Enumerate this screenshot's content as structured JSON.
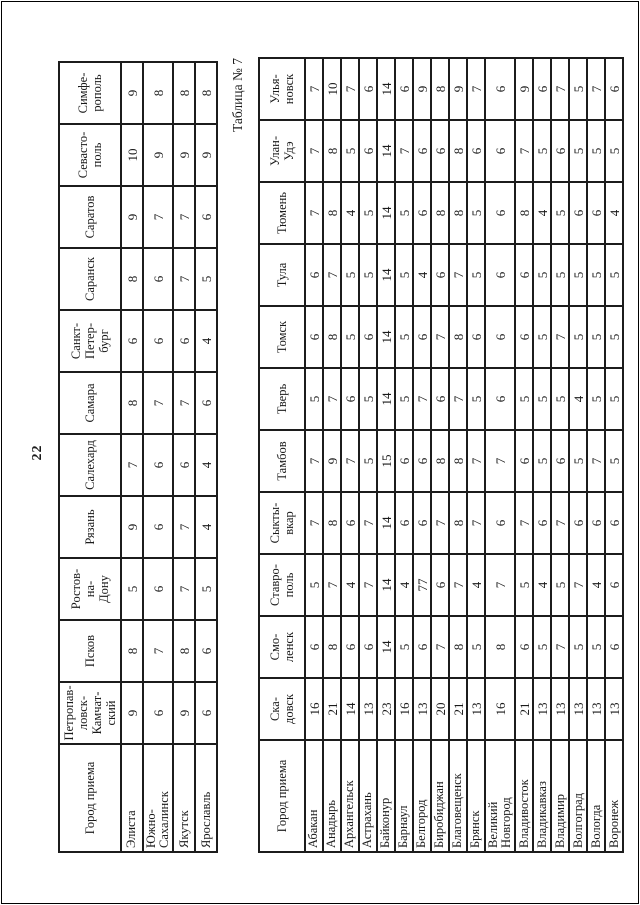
{
  "colors": {
    "ink": "#1a1a1a",
    "paper": "#ffffff"
  },
  "page": {
    "number": "22",
    "caption": "Таблица № 7"
  },
  "table_top": {
    "corner_header": "Город приема",
    "columns": [
      "Петропав-\nловск-\nКамчат-\nский",
      "Псков",
      "Ростов-\nна-\nДону",
      "Рязань",
      "Салехард",
      "Самара",
      "Санкт-\nПетер-\nбург",
      "Саранск",
      "Саратов",
      "Севасто-\nполь",
      "Симфе-\nрополь"
    ],
    "rows": [
      {
        "label": "Элиста",
        "values": [
          9,
          8,
          5,
          9,
          7,
          8,
          6,
          8,
          9,
          10,
          9
        ]
      },
      {
        "label": "Южно-\nСахалинск",
        "values": [
          6,
          7,
          6,
          6,
          6,
          7,
          6,
          6,
          7,
          9,
          8
        ]
      },
      {
        "label": "Якутск",
        "values": [
          9,
          8,
          7,
          7,
          6,
          7,
          6,
          7,
          7,
          9,
          8
        ]
      },
      {
        "label": "Ярославль",
        "values": [
          6,
          6,
          5,
          4,
          4,
          6,
          4,
          5,
          6,
          9,
          8
        ]
      }
    ]
  },
  "table_bottom": {
    "corner_header": "Город приема",
    "columns": [
      "Ска-\nдовск",
      "Смо-\nленск",
      "Ставро-\nполь",
      "Сыкты-\nвкар",
      "Тамбов",
      "Тверь",
      "Томск",
      "Тула",
      "Тюмень",
      "Улан-\nУдэ",
      "Улья-\nновск"
    ],
    "rows": [
      {
        "label": "Абакан",
        "values": [
          16,
          6,
          5,
          7,
          7,
          5,
          6,
          6,
          7,
          7,
          7
        ]
      },
      {
        "label": "Анадырь",
        "values": [
          21,
          8,
          7,
          8,
          9,
          7,
          8,
          7,
          8,
          8,
          10
        ]
      },
      {
        "label": "Архангельск",
        "values": [
          14,
          6,
          4,
          6,
          7,
          6,
          5,
          5,
          4,
          5,
          7
        ]
      },
      {
        "label": "Астрахань",
        "values": [
          13,
          6,
          7,
          7,
          5,
          5,
          6,
          5,
          5,
          6,
          6
        ]
      },
      {
        "label": "Байконур",
        "values": [
          23,
          14,
          14,
          14,
          15,
          14,
          14,
          14,
          14,
          14,
          14
        ]
      },
      {
        "label": "Барнаул",
        "values": [
          16,
          5,
          4,
          6,
          6,
          5,
          5,
          5,
          5,
          7,
          6
        ]
      },
      {
        "label": "Белгород",
        "values": [
          13,
          6,
          77,
          6,
          6,
          7,
          6,
          4,
          6,
          6,
          9
        ]
      },
      {
        "label": "Биробиджан",
        "values": [
          20,
          7,
          6,
          7,
          8,
          6,
          7,
          6,
          8,
          6,
          8
        ]
      },
      {
        "label": "Благовещенск",
        "values": [
          21,
          8,
          7,
          8,
          8,
          7,
          8,
          7,
          8,
          8,
          9
        ]
      },
      {
        "label": "Брянск",
        "values": [
          13,
          5,
          4,
          7,
          7,
          5,
          6,
          5,
          5,
          6,
          7
        ]
      },
      {
        "label": "Великий\nНовгород",
        "values": [
          16,
          8,
          7,
          6,
          7,
          6,
          6,
          6,
          6,
          6,
          6
        ]
      },
      {
        "label": "Владивосток",
        "values": [
          21,
          6,
          5,
          7,
          6,
          5,
          6,
          6,
          8,
          7,
          9
        ]
      },
      {
        "label": "Владикавказ",
        "values": [
          13,
          5,
          4,
          6,
          5,
          5,
          5,
          5,
          4,
          5,
          6
        ]
      },
      {
        "label": "Владимир",
        "values": [
          13,
          7,
          5,
          7,
          6,
          5,
          7,
          5,
          5,
          6,
          7
        ]
      },
      {
        "label": "Волгоград",
        "values": [
          13,
          5,
          7,
          6,
          5,
          4,
          5,
          5,
          6,
          5,
          5
        ]
      },
      {
        "label": "Вологда",
        "values": [
          13,
          5,
          4,
          6,
          7,
          5,
          5,
          5,
          6,
          5,
          7
        ]
      },
      {
        "label": "Воронеж",
        "values": [
          13,
          6,
          6,
          6,
          5,
          5,
          5,
          5,
          4,
          5,
          6
        ]
      }
    ]
  }
}
